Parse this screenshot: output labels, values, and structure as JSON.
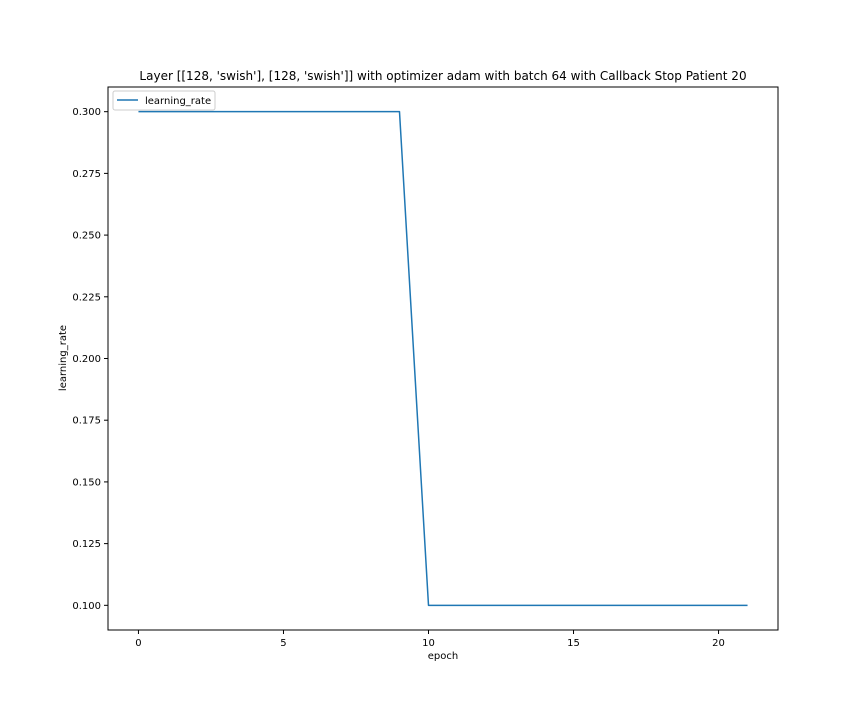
{
  "chart_data": {
    "type": "line",
    "title": "Layer [[128, 'swish'], [128, 'swish']] with optimizer adam with batch 64 with Callback Stop Patient 20",
    "xlabel": "epoch",
    "ylabel": "learning_rate",
    "xlim": [
      -1.05,
      22.05
    ],
    "ylim": [
      0.09,
      0.31
    ],
    "x_ticks": [
      0,
      5,
      10,
      15,
      20
    ],
    "x_tick_labels": [
      "0",
      "5",
      "10",
      "15",
      "20"
    ],
    "y_ticks": [
      0.1,
      0.125,
      0.15,
      0.175,
      0.2,
      0.225,
      0.25,
      0.275,
      0.3
    ],
    "y_tick_labels": [
      "0.100",
      "0.125",
      "0.150",
      "0.175",
      "0.200",
      "0.225",
      "0.250",
      "0.275",
      "0.300"
    ],
    "grid": false,
    "legend_position": "upper-left",
    "series": [
      {
        "name": "learning_rate",
        "color": "#1f77b4",
        "x": [
          0,
          1,
          2,
          3,
          4,
          5,
          6,
          7,
          8,
          9,
          10,
          11,
          12,
          13,
          14,
          15,
          16,
          17,
          18,
          19,
          20,
          21
        ],
        "values": [
          0.3,
          0.3,
          0.3,
          0.3,
          0.3,
          0.3,
          0.3,
          0.3,
          0.3,
          0.3,
          0.1,
          0.1,
          0.1,
          0.1,
          0.1,
          0.1,
          0.1,
          0.1,
          0.1,
          0.1,
          0.1,
          0.1
        ]
      }
    ]
  }
}
